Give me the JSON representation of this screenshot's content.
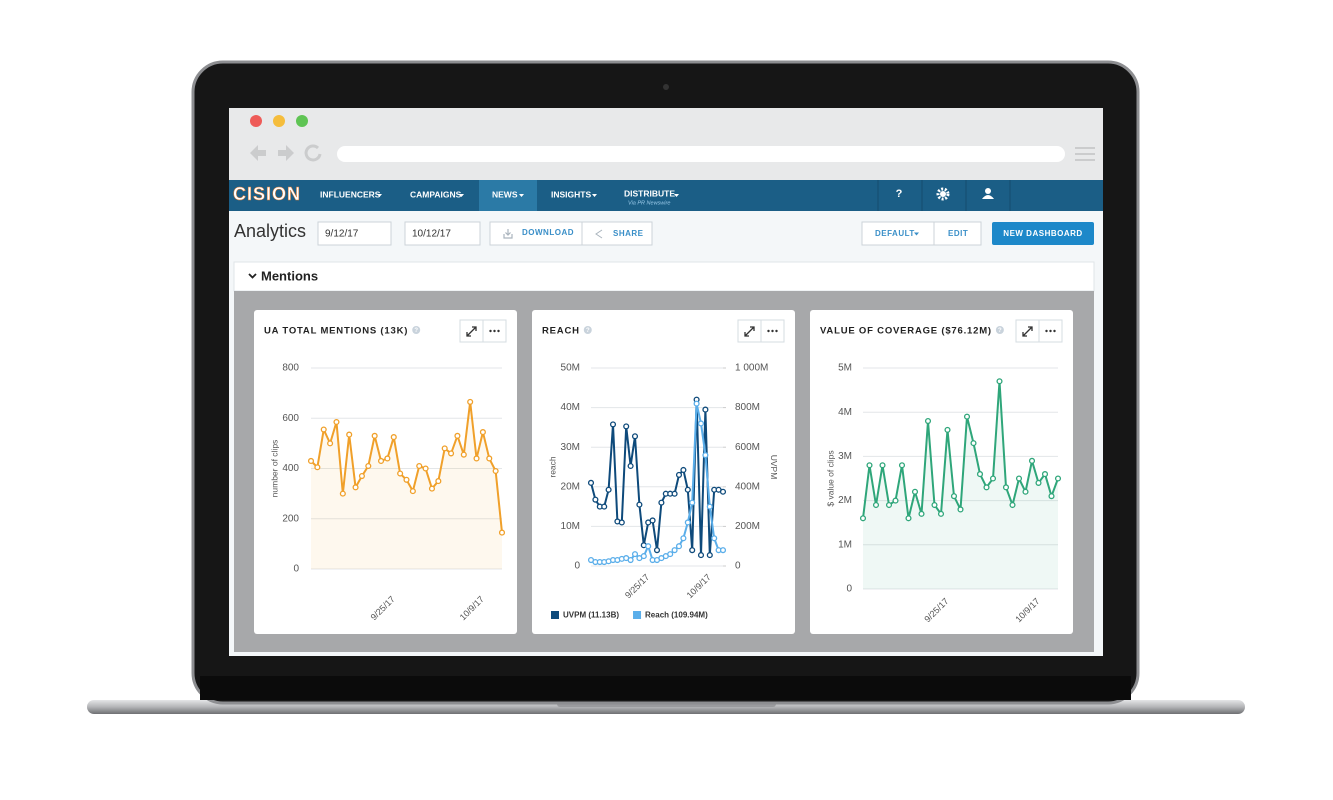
{
  "help_icon": "?",
  "nav": {
    "logo": "CISION",
    "items": [
      "INFLUENCERS",
      "CAMPAIGNS",
      "NEWS",
      "INSIGHTS",
      "DISTRIBUTE"
    ],
    "distribute_sub": "Via PR Newswire"
  },
  "toolbar": {
    "title": "Analytics",
    "start_date": "9/12/17",
    "end_date": "10/12/17",
    "download": "DOWNLOAD",
    "share": "SHARE",
    "default": "DEFAULT",
    "edit": "EDIT",
    "new_dashboard": "NEW DASHBOARD"
  },
  "section": {
    "title": "Mentions"
  },
  "chart_data": [
    {
      "type": "line",
      "title": "UA TOTAL MENTIONS (13K)",
      "y_label": "number of clips",
      "categories": [
        null,
        null,
        null,
        null,
        null,
        null,
        null,
        null,
        null,
        null,
        null,
        null,
        null,
        "9/25/17",
        null,
        null,
        null,
        null,
        null,
        null,
        null,
        null,
        null,
        null,
        null,
        null,
        null,
        "10/9/17",
        null,
        null,
        null
      ],
      "values": [
        430,
        405,
        555,
        500,
        585,
        300,
        535,
        325,
        370,
        410,
        530,
        430,
        440,
        525,
        380,
        355,
        310,
        410,
        400,
        320,
        350,
        480,
        460,
        530,
        455,
        665,
        440,
        545,
        440,
        390,
        145
      ],
      "color": "#f0a02a",
      "area": true,
      "ylim": [
        0,
        800
      ],
      "yticks": [
        0,
        200,
        400,
        600,
        800
      ],
      "grid": true
    },
    {
      "type": "line",
      "title": "REACH",
      "y_label": "reach",
      "y2_label": "UVPM",
      "categories": [
        null,
        null,
        null,
        null,
        null,
        null,
        null,
        null,
        null,
        null,
        null,
        null,
        null,
        "9/25/17",
        null,
        null,
        null,
        null,
        null,
        null,
        null,
        null,
        null,
        null,
        null,
        null,
        null,
        "10/9/17",
        null,
        null,
        null
      ],
      "series": [
        {
          "name": "UVPM (11.13B)",
          "color": "#0e4a7b",
          "axis": "y2",
          "values": [
            420,
            335,
            300,
            300,
            385,
            715,
            225,
            220,
            705,
            505,
            655,
            310,
            105,
            220,
            230,
            80,
            320,
            365,
            365,
            365,
            460,
            485,
            385,
            80,
            840,
            55,
            790,
            55,
            385,
            385,
            375
          ]
        },
        {
          "name": "Reach (109.94M)",
          "color": "#5aaeea",
          "values": [
            1.5,
            1,
            1,
            1,
            1.2,
            1.5,
            1.5,
            1.8,
            2,
            1.5,
            3,
            2,
            2.5,
            5,
            1.5,
            1.5,
            2,
            2.5,
            3,
            4,
            5,
            7,
            11,
            16,
            41,
            36,
            28,
            15,
            7,
            4,
            4
          ]
        }
      ],
      "ylim": [
        0,
        50
      ],
      "yticks": [
        0,
        {
          "value": 10,
          "label": "10M"
        },
        {
          "value": 20,
          "label": "20M"
        },
        {
          "value": 30,
          "label": "30M"
        },
        {
          "value": 40,
          "label": "40M"
        },
        {
          "value": 50,
          "label": "50M"
        }
      ],
      "y2lim": [
        0,
        1000
      ],
      "y2ticks": [
        0,
        {
          "value": 200,
          "label": "200M"
        },
        {
          "value": 400,
          "label": "400M"
        },
        {
          "value": 600,
          "label": "600M"
        },
        {
          "value": 800,
          "label": "800M"
        },
        {
          "value": 1000,
          "label": "1 000M"
        }
      ],
      "grid": true,
      "legend": "bottom"
    },
    {
      "type": "line",
      "title": "VALUE OF COVERAGE ($76.12M)",
      "y_label": "$ value of clips",
      "categories": [
        null,
        null,
        null,
        null,
        null,
        null,
        null,
        null,
        null,
        null,
        null,
        null,
        null,
        "9/25/17",
        null,
        null,
        null,
        null,
        null,
        null,
        null,
        null,
        null,
        null,
        null,
        null,
        null,
        "10/9/17",
        null,
        null,
        null
      ],
      "values": [
        1.6,
        2.8,
        1.9,
        2.8,
        1.9,
        2.0,
        2.8,
        1.6,
        2.2,
        1.7,
        3.8,
        1.9,
        1.7,
        3.6,
        2.1,
        1.8,
        3.9,
        3.3,
        2.6,
        2.3,
        2.5,
        4.7,
        2.3,
        1.9,
        2.5,
        2.2,
        2.9,
        2.4,
        2.6,
        2.1,
        2.5
      ],
      "color": "#2fa67a",
      "area": true,
      "ylim": [
        0,
        5
      ],
      "yticks": [
        0,
        {
          "value": 1,
          "label": "1M"
        },
        {
          "value": 2,
          "label": "2M"
        },
        {
          "value": 3,
          "label": "3M"
        },
        {
          "value": 4,
          "label": "4M"
        },
        {
          "value": 5,
          "label": "5M"
        }
      ],
      "grid": true
    }
  ]
}
